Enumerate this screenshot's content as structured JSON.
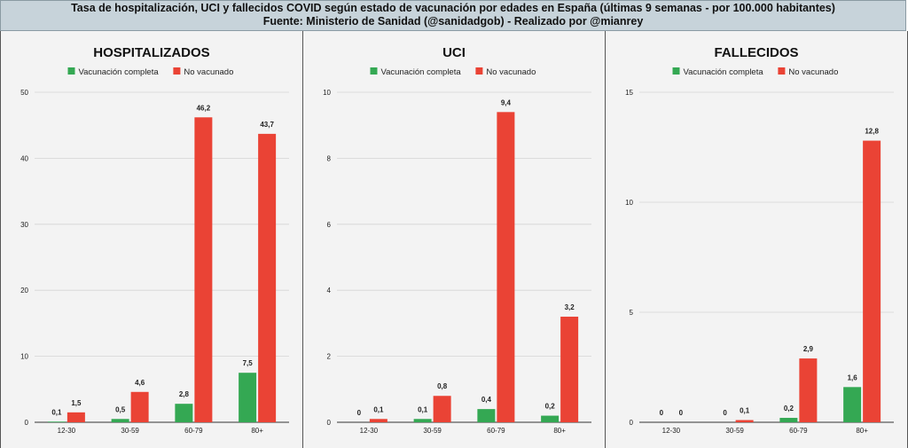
{
  "header": {
    "line1": "Tasa de hospitalización, UCI y fallecidos COVID según estado de vacunación por edades en España (últimas 9 semanas - por 100.000 habitantes)",
    "line2": "Fuente: Ministerio de Sanidad (@sanidadgob) - Realizado por @mianrey"
  },
  "colors": {
    "vacunado": "#34a853",
    "no_vacunado": "#ea4335",
    "grid": "#d4d4d4"
  },
  "chart_data": [
    {
      "type": "bar",
      "title": "HOSPITALIZADOS",
      "categories": [
        "12-30",
        "30-59",
        "60-79",
        "80+"
      ],
      "series": [
        {
          "name": "Vacunación completa",
          "values": [
            0.1,
            0.5,
            2.8,
            7.5
          ],
          "labels": [
            "0,1",
            "0,5",
            "2,8",
            "7,5"
          ]
        },
        {
          "name": "No vacunado",
          "values": [
            1.5,
            4.6,
            46.2,
            43.7
          ],
          "labels": [
            "1,5",
            "4,6",
            "46,2",
            "43,7"
          ]
        }
      ],
      "yticks": [
        0,
        10,
        20,
        30,
        40,
        50
      ],
      "ylim": [
        0,
        50
      ],
      "legend": "top"
    },
    {
      "type": "bar",
      "title": "UCI",
      "categories": [
        "12-30",
        "30-59",
        "60-79",
        "80+"
      ],
      "series": [
        {
          "name": "Vacunación completa",
          "values": [
            0,
            0.1,
            0.4,
            0.2
          ],
          "labels": [
            "0",
            "0,1",
            "0,4",
            "0,2"
          ]
        },
        {
          "name": "No vacunado",
          "values": [
            0.1,
            0.8,
            9.4,
            3.2
          ],
          "labels": [
            "0,1",
            "0,8",
            "9,4",
            "3,2"
          ]
        }
      ],
      "yticks": [
        0,
        2,
        4,
        6,
        8,
        10
      ],
      "ylim": [
        0,
        10
      ],
      "legend": "top"
    },
    {
      "type": "bar",
      "title": "FALLECIDOS",
      "categories": [
        "12-30",
        "30-59",
        "60-79",
        "80+"
      ],
      "series": [
        {
          "name": "Vacunación completa",
          "values": [
            0,
            0,
            0.2,
            1.6
          ],
          "labels": [
            "0",
            "0",
            "0,2",
            "1,6"
          ]
        },
        {
          "name": "No vacunado",
          "values": [
            0,
            0.1,
            2.9,
            12.8
          ],
          "labels": [
            "0",
            "0,1",
            "2,9",
            "12,8"
          ]
        }
      ],
      "yticks": [
        0,
        5,
        10,
        15
      ],
      "ylim": [
        0,
        15
      ],
      "legend": "top"
    }
  ]
}
